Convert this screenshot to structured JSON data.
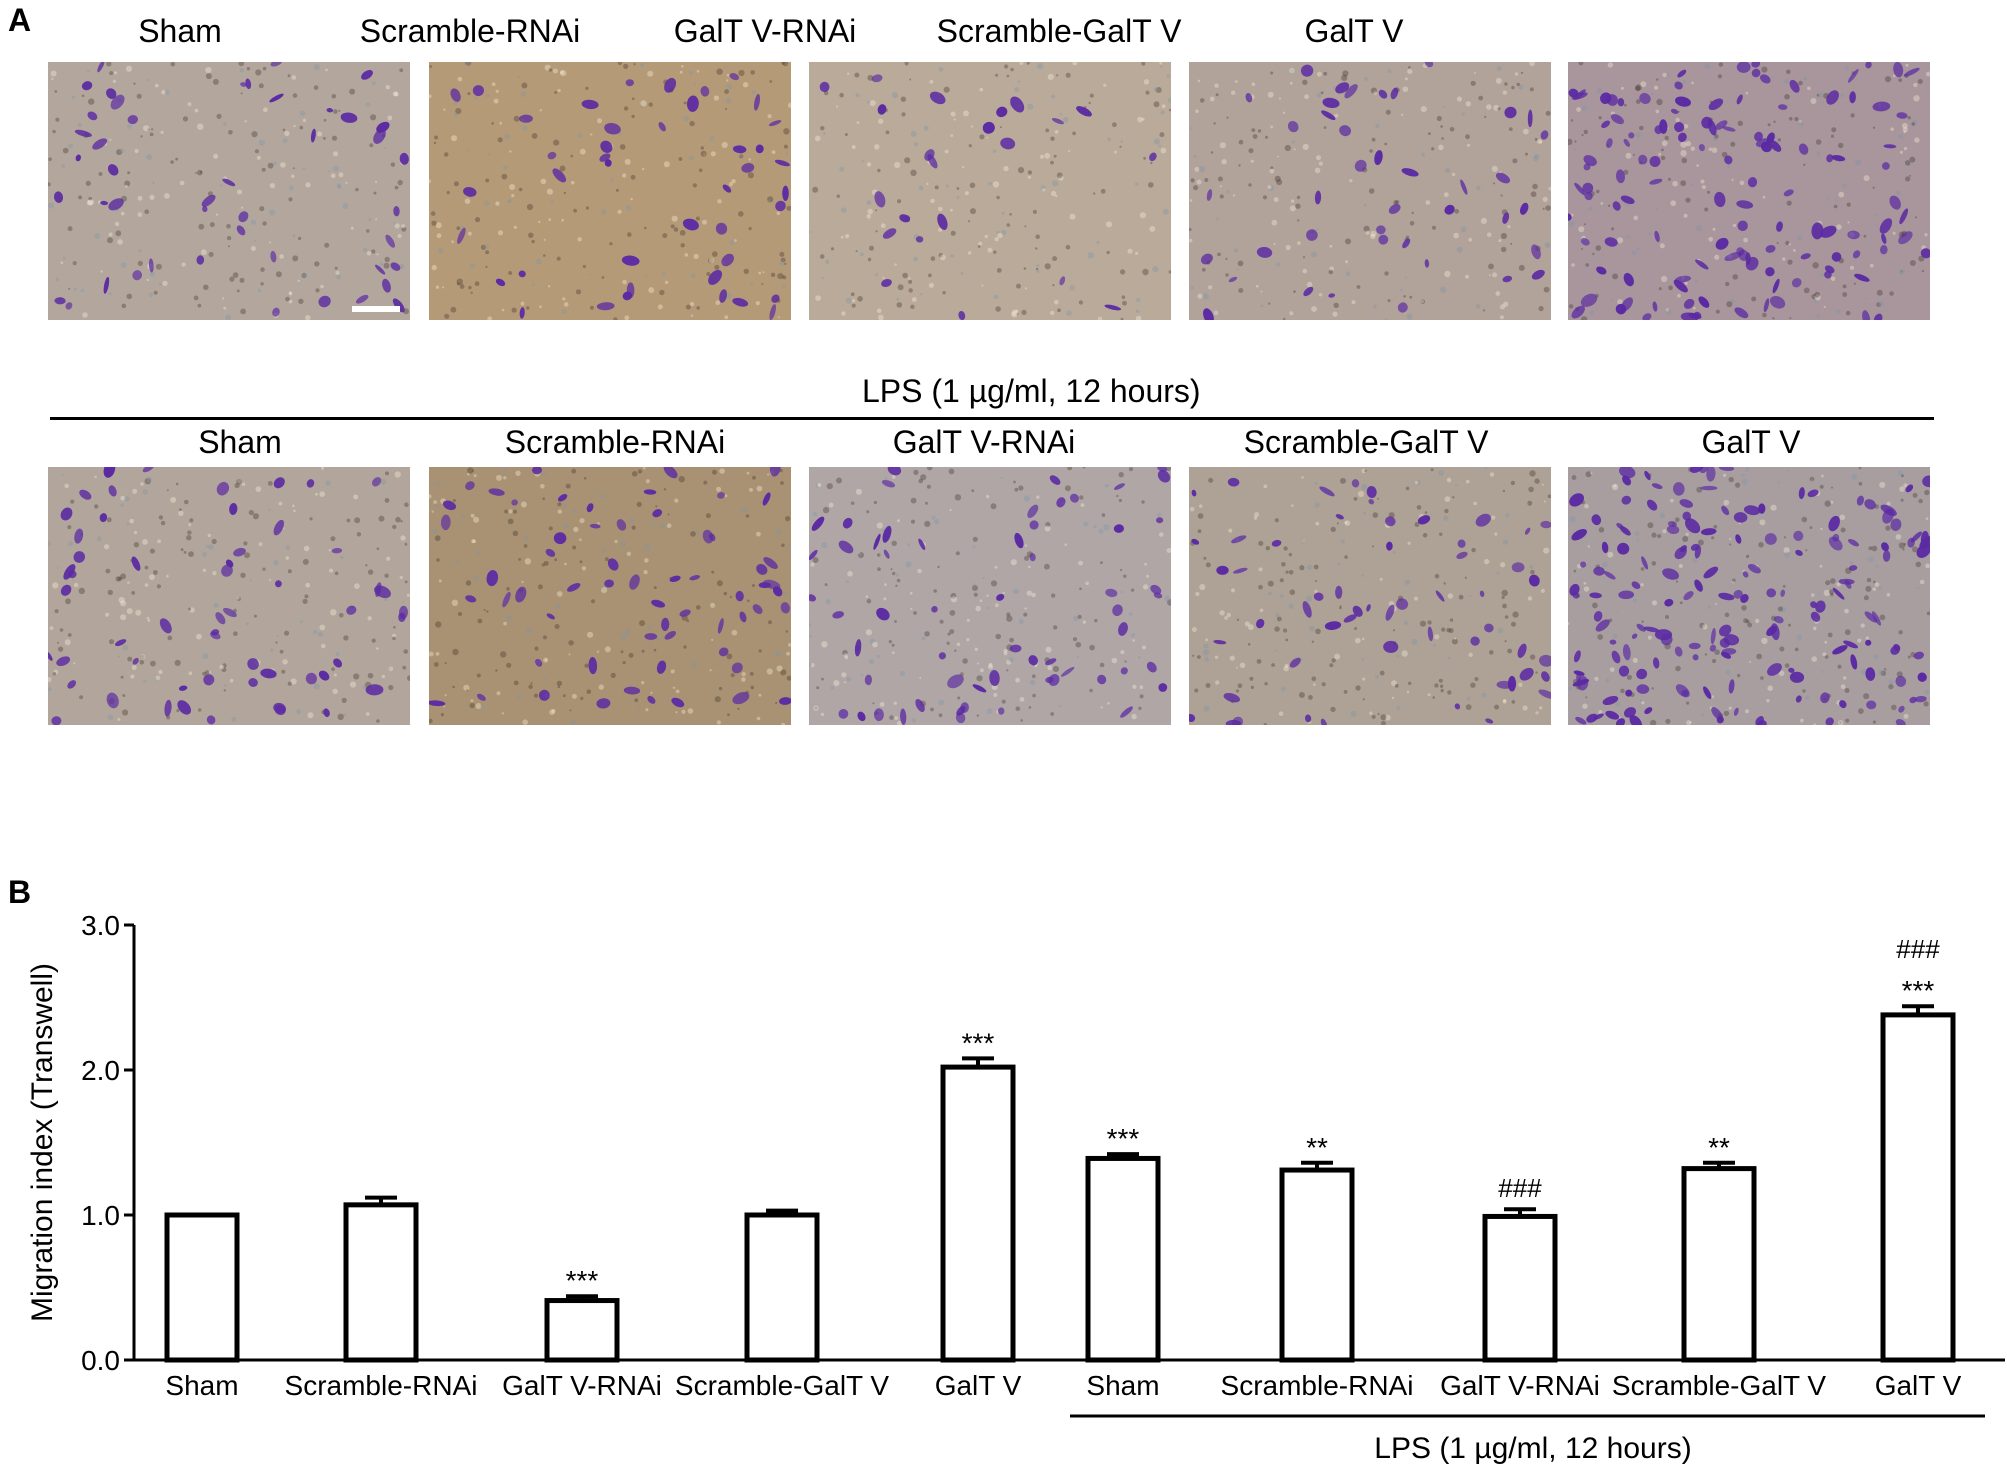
{
  "panel_a": {
    "letter": "A",
    "top_row_labels": [
      "Sham",
      "Scramble-RNAi",
      "GalT V-RNAi",
      "Scramble-GalT V",
      "GalT V"
    ],
    "lps_caption": "LPS (1 µg/ml, 12 hours)",
    "bottom_row_labels": [
      "Sham",
      "Scramble-RNAi",
      "GalT V-RNAi",
      "Scramble-GalT V",
      "GalT V"
    ],
    "cell_stain_color": "#5b2aa3",
    "background_tints": [
      "#b3a79d",
      "#b59a78",
      "#b9aa9a",
      "#b1a29a",
      "#a8969c",
      "#b2a69c",
      "#a99274",
      "#b0a6a6",
      "#aea196",
      "#a89ea0"
    ],
    "cell_densities": [
      45,
      42,
      22,
      40,
      120,
      55,
      60,
      58,
      55,
      160
    ]
  },
  "panel_b": {
    "letter": "B"
  },
  "chart_data": {
    "type": "bar",
    "categories": [
      "Sham",
      "Scramble-RNAi",
      "GalT V-RNAi",
      "Scramble-GalT V",
      "GalT V",
      "Sham",
      "Scramble-RNAi",
      "GalT V-RNAi",
      "Scramble-GalT V",
      "GalT V"
    ],
    "values": [
      1.0,
      1.07,
      0.41,
      1.0,
      2.02,
      1.39,
      1.31,
      0.99,
      1.32,
      2.38
    ],
    "errors": [
      0.0,
      0.05,
      0.03,
      0.03,
      0.06,
      0.03,
      0.05,
      0.05,
      0.04,
      0.06
    ],
    "annotations_star": [
      "",
      "",
      "***",
      "",
      "***",
      "***",
      "**",
      "",
      "**",
      "***"
    ],
    "annotations_hash": [
      "",
      "",
      "",
      "",
      "",
      "",
      "",
      "###",
      "",
      "###"
    ],
    "ylabel": "Migration index (Transwell)",
    "xlabel": "",
    "ylim": [
      0.0,
      3.0
    ],
    "yticks": [
      "0.0",
      "1.0",
      "2.0",
      "3.0"
    ],
    "group_label": "LPS (1 µg/ml, 12 hours)",
    "grid": false,
    "bar_fill": "#ffffff",
    "bar_edge": "#000000"
  }
}
